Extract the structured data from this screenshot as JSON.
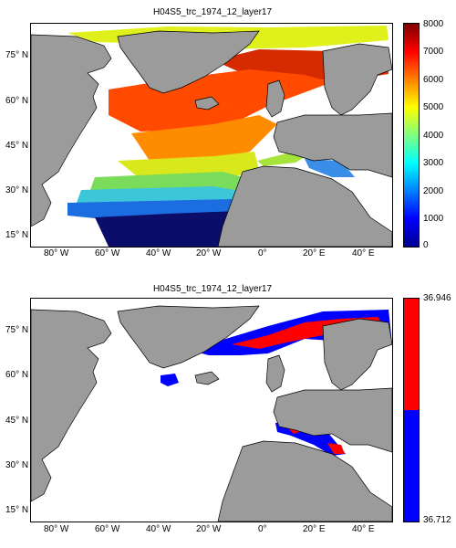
{
  "panels": [
    {
      "title": "H04S5_trc_1974_12_layer17",
      "lat_ticks": [
        "75° N",
        "60° N",
        "45° N",
        "30° N",
        "15° N"
      ],
      "lon_ticks": [
        "80° W",
        "60° W",
        "40° W",
        "20° W",
        "0°",
        "20° E",
        "40° E"
      ],
      "colorbar": {
        "ticks": [
          "8000",
          "7000",
          "6000",
          "5000",
          "4000",
          "3000",
          "2000",
          "1000",
          "0"
        ],
        "range": [
          0,
          8000
        ],
        "colormap": "jet"
      }
    },
    {
      "title": "H04S5_trc_1974_12_layer17",
      "lat_ticks": [
        "75° N",
        "60° N",
        "45° N",
        "30° N",
        "15° N"
      ],
      "lon_ticks": [
        "80° W",
        "60° W",
        "40° W",
        "20° W",
        "0°",
        "20° E",
        "40° E"
      ],
      "colorbar": {
        "ticks": [
          "36.946",
          "36.712"
        ],
        "colors": [
          "#ff0000",
          "#0000ff"
        ]
      }
    }
  ],
  "colors": {
    "land": "#9b9b9b",
    "ocean": "#ffffff",
    "high": "#ff0000",
    "low": "#0000ff"
  }
}
